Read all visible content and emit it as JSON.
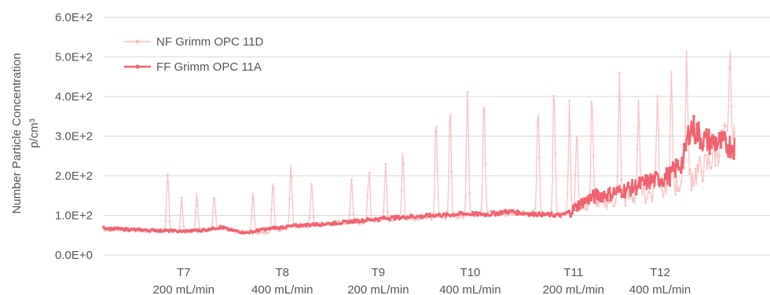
{
  "chart_data": {
    "type": "line",
    "ylabel": "Number Particle Concentration",
    "ylabel_unit": "p/cm³",
    "ylim": [
      0,
      600
    ],
    "y_ticks": [
      "0.0E+0",
      "1.0E+2",
      "2.0E+2",
      "3.0E+2",
      "4.0E+2",
      "5.0E+2",
      "6.0E+2"
    ],
    "y_tick_values": [
      0,
      100,
      200,
      300,
      400,
      500,
      600
    ],
    "grid": true,
    "legend_position": "top-left",
    "x_range": [
      0,
      1000
    ],
    "categories": [
      {
        "label": "T7",
        "sub": "200 mL/min",
        "x": 120
      },
      {
        "label": "T8",
        "sub": "400 mL/min",
        "x": 268
      },
      {
        "label": "T9",
        "sub": "200 mL/min",
        "x": 412
      },
      {
        "label": "T10",
        "sub": "400 mL/min",
        "x": 550
      },
      {
        "label": "T11",
        "sub": "200 mL/min",
        "x": 705
      },
      {
        "label": "T12",
        "sub": "400 mL/min",
        "x": 835
      }
    ],
    "series": [
      {
        "name": "NF Grimm OPC 11D",
        "color": "#f8c4c4",
        "baseline": [
          [
            0,
            65
          ],
          [
            60,
            62
          ],
          [
            120,
            60
          ],
          [
            160,
            64
          ],
          [
            180,
            70
          ],
          [
            200,
            58
          ],
          [
            240,
            56
          ],
          [
            290,
            72
          ],
          [
            340,
            80
          ],
          [
            400,
            85
          ],
          [
            440,
            92
          ],
          [
            500,
            96
          ],
          [
            560,
            104
          ],
          [
            600,
            106
          ],
          [
            640,
            108
          ],
          [
            670,
            100
          ],
          [
            690,
            100
          ],
          [
            705,
            110
          ],
          [
            720,
            120
          ],
          [
            760,
            140
          ],
          [
            800,
            148
          ],
          [
            850,
            170
          ],
          [
            880,
            195
          ],
          [
            905,
            225
          ],
          [
            930,
            290
          ],
          [
            948,
            280
          ]
        ],
        "spikes": [
          [
            96,
            235
          ],
          [
            117,
            145
          ],
          [
            140,
            165
          ],
          [
            166,
            175
          ],
          [
            224,
            175
          ],
          [
            254,
            195
          ],
          [
            281,
            275
          ],
          [
            312,
            200
          ],
          [
            372,
            220
          ],
          [
            398,
            235
          ],
          [
            423,
            250
          ],
          [
            449,
            275
          ],
          [
            499,
            380
          ],
          [
            520,
            390
          ],
          [
            546,
            455
          ],
          [
            571,
            440
          ],
          [
            652,
            450
          ],
          [
            676,
            470
          ],
          [
            699,
            415
          ],
          [
            710,
            365
          ],
          [
            733,
            450
          ],
          [
            774,
            505
          ],
          [
            803,
            415
          ],
          [
            831,
            445
          ],
          [
            852,
            470
          ],
          [
            875,
            565
          ],
          [
            940,
            550
          ]
        ]
      },
      {
        "name": "FF Grimm OPC 11A",
        "color": "#f2636f",
        "points": [
          [
            0,
            68
          ],
          [
            40,
            64
          ],
          [
            80,
            62
          ],
          [
            120,
            60
          ],
          [
            150,
            63
          ],
          [
            175,
            70
          ],
          [
            200,
            60
          ],
          [
            215,
            56
          ],
          [
            240,
            65
          ],
          [
            290,
            74
          ],
          [
            340,
            79
          ],
          [
            390,
            88
          ],
          [
            440,
            95
          ],
          [
            490,
            99
          ],
          [
            540,
            104
          ],
          [
            580,
            103
          ],
          [
            610,
            110
          ],
          [
            640,
            104
          ],
          [
            670,
            102
          ],
          [
            688,
            100
          ],
          [
            700,
            110
          ],
          [
            720,
            135
          ],
          [
            740,
            150
          ],
          [
            760,
            155
          ],
          [
            790,
            168
          ],
          [
            820,
            185
          ],
          [
            850,
            200
          ],
          [
            870,
            240
          ],
          [
            880,
            325
          ],
          [
            890,
            310
          ],
          [
            900,
            290
          ],
          [
            948,
            275
          ]
        ]
      }
    ]
  }
}
